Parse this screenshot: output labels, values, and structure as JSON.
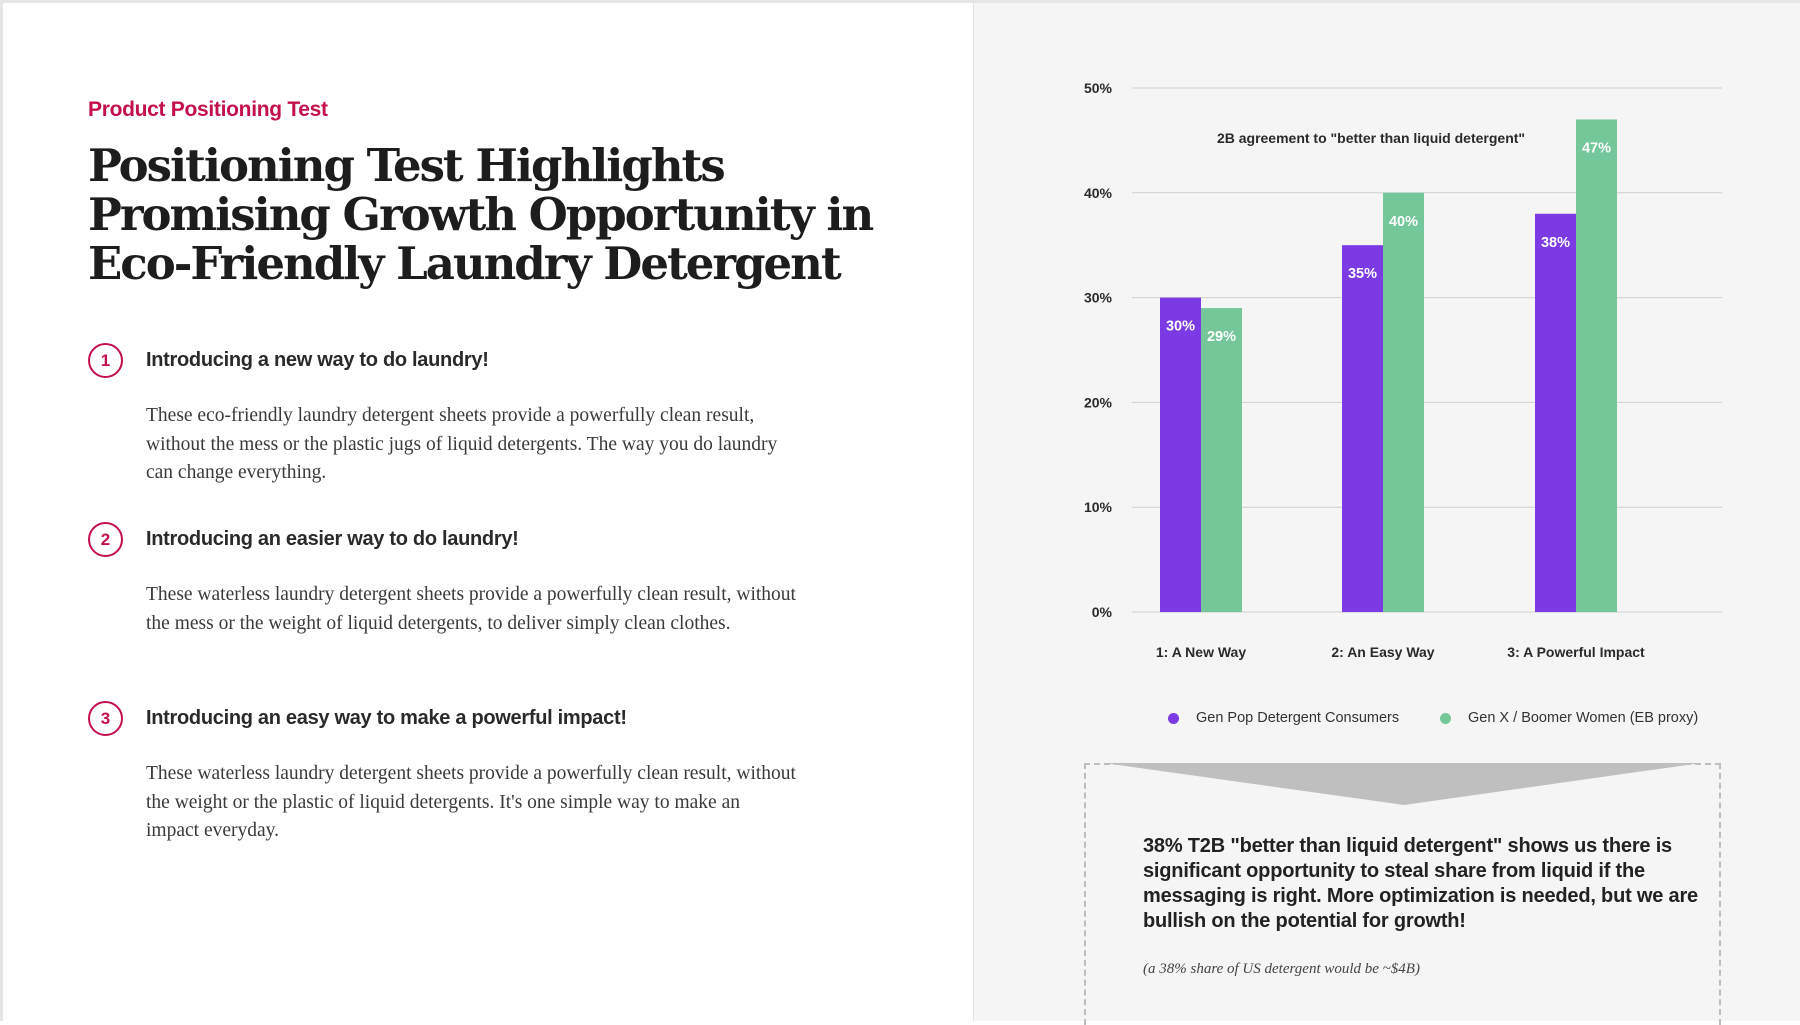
{
  "left": {
    "eyebrow": "Product Positioning Test",
    "title": "Positioning Test Highlights Promising Growth Opportunity in Eco-Friendly Laundry Detergent",
    "items": [
      {
        "number": "1",
        "heading": "Introducing a new way to do laundry!",
        "body": "These eco-friendly laundry detergent sheets provide a powerfully clean result, without the mess or the plastic jugs of liquid detergents. The way you do laundry can change everything."
      },
      {
        "number": "2",
        "heading": "Introducing an easier way to do laundry!",
        "body": "These waterless laundry detergent sheets provide a powerfully clean result, without the mess or the weight of liquid detergents, to deliver simply clean clothes."
      },
      {
        "number": "3",
        "heading": "Introducing an easy way to make a powerful impact!",
        "body": "These waterless laundry detergent sheets provide a powerfully clean result, without the weight or the plastic of liquid detergents. It's one simple way to make an impact everyday."
      }
    ]
  },
  "colors": {
    "accent": "#c4104a",
    "series_purple": "#7b3ae4",
    "series_green": "#74c799",
    "grid": "#cfcfcf"
  },
  "chart_data": {
    "type": "bar",
    "title": "2B agreement to \"better than liquid detergent\"",
    "categories": [
      "1: A New Way",
      "2: An Easy Way",
      "3: A Powerful Impact"
    ],
    "series": [
      {
        "name": "Gen Pop Detergent Consumers",
        "values": [
          30,
          35,
          38
        ],
        "labels": [
          "30%",
          "35%",
          "38%"
        ]
      },
      {
        "name": "Gen X / Boomer Women (EB proxy)",
        "values": [
          29,
          40,
          47
        ],
        "labels": [
          "29%",
          "40%",
          "47%"
        ]
      }
    ],
    "ylim": [
      0,
      50
    ],
    "yticks": [
      0,
      10,
      20,
      30,
      40,
      50
    ],
    "ytick_labels": [
      "0%",
      "10%",
      "20%",
      "30%",
      "40%",
      "50%"
    ],
    "xlabel": "",
    "ylabel": "",
    "grid": true,
    "legend_position": "bottom"
  },
  "callout": {
    "text": "38% T2B \"better than liquid detergent\" shows us there is significant opportunity to steal share from liquid if the messaging is right. More optimization is needed, but we are bullish on the potential for growth!",
    "note": "(a 38% share of US detergent would be ~$4B)"
  }
}
